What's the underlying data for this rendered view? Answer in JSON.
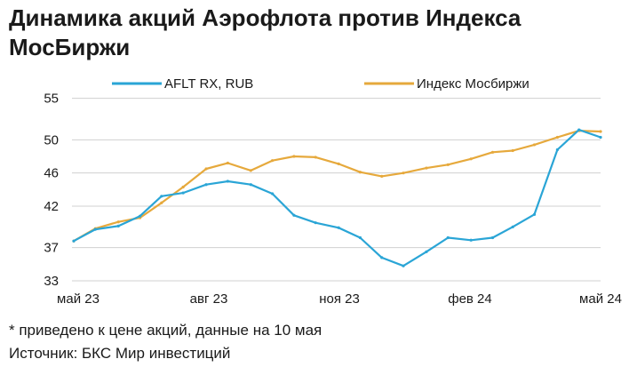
{
  "title": "Динамика акций Аэрофлота против Индекса МосБиржи",
  "footnote": "* приведено к цене акций, данные на 10 мая",
  "source": "Источник: БКС Мир инвестиций",
  "chart_data": {
    "type": "line",
    "title": "Динамика акций Аэрофлота против Индекса МосБиржи",
    "xlabel": "",
    "ylabel": "",
    "x_ticks": [
      "май 23",
      "авг 23",
      "ноя 23",
      "фев 24",
      "май 24"
    ],
    "y_ticks": [
      33,
      37,
      42,
      46,
      50,
      55
    ],
    "ylim": [
      33,
      55.5
    ],
    "grid": "horizontal",
    "legend_position": "top",
    "colors": {
      "AFLT RX, RUB": "#2aa5d6",
      "Индекс Мосбиржи": "#e6a93c",
      "grid": "#d0d0d0"
    },
    "x": [
      "2023-05-10",
      "2023-05-25",
      "2023-06-10",
      "2023-06-25",
      "2023-07-10",
      "2023-07-25",
      "2023-08-10",
      "2023-08-25",
      "2023-09-10",
      "2023-09-25",
      "2023-10-10",
      "2023-10-25",
      "2023-11-10",
      "2023-11-25",
      "2023-12-10",
      "2023-12-25",
      "2024-01-10",
      "2024-01-25",
      "2024-02-10",
      "2024-02-25",
      "2024-03-10",
      "2024-03-25",
      "2024-04-10",
      "2024-04-25",
      "2024-05-10"
    ],
    "series": [
      {
        "name": "AFLT RX, RUB",
        "values": [
          37.8,
          39.2,
          39.6,
          40.8,
          43.2,
          43.6,
          44.6,
          45.0,
          44.6,
          43.5,
          40.9,
          40.0,
          39.4,
          38.2,
          35.8,
          34.8,
          36.5,
          38.2,
          37.9,
          38.2,
          39.5,
          41.0,
          48.8,
          51.2,
          50.3
        ]
      },
      {
        "name": "Индекс Мосбиржи",
        "values": [
          37.8,
          39.3,
          40.1,
          40.6,
          42.4,
          44.3,
          46.5,
          47.2,
          46.3,
          47.5,
          48.0,
          47.9,
          47.1,
          46.1,
          45.6,
          46.0,
          46.6,
          47.0,
          47.7,
          48.5,
          48.7,
          49.4,
          50.3,
          51.1,
          51.0
        ]
      }
    ]
  }
}
